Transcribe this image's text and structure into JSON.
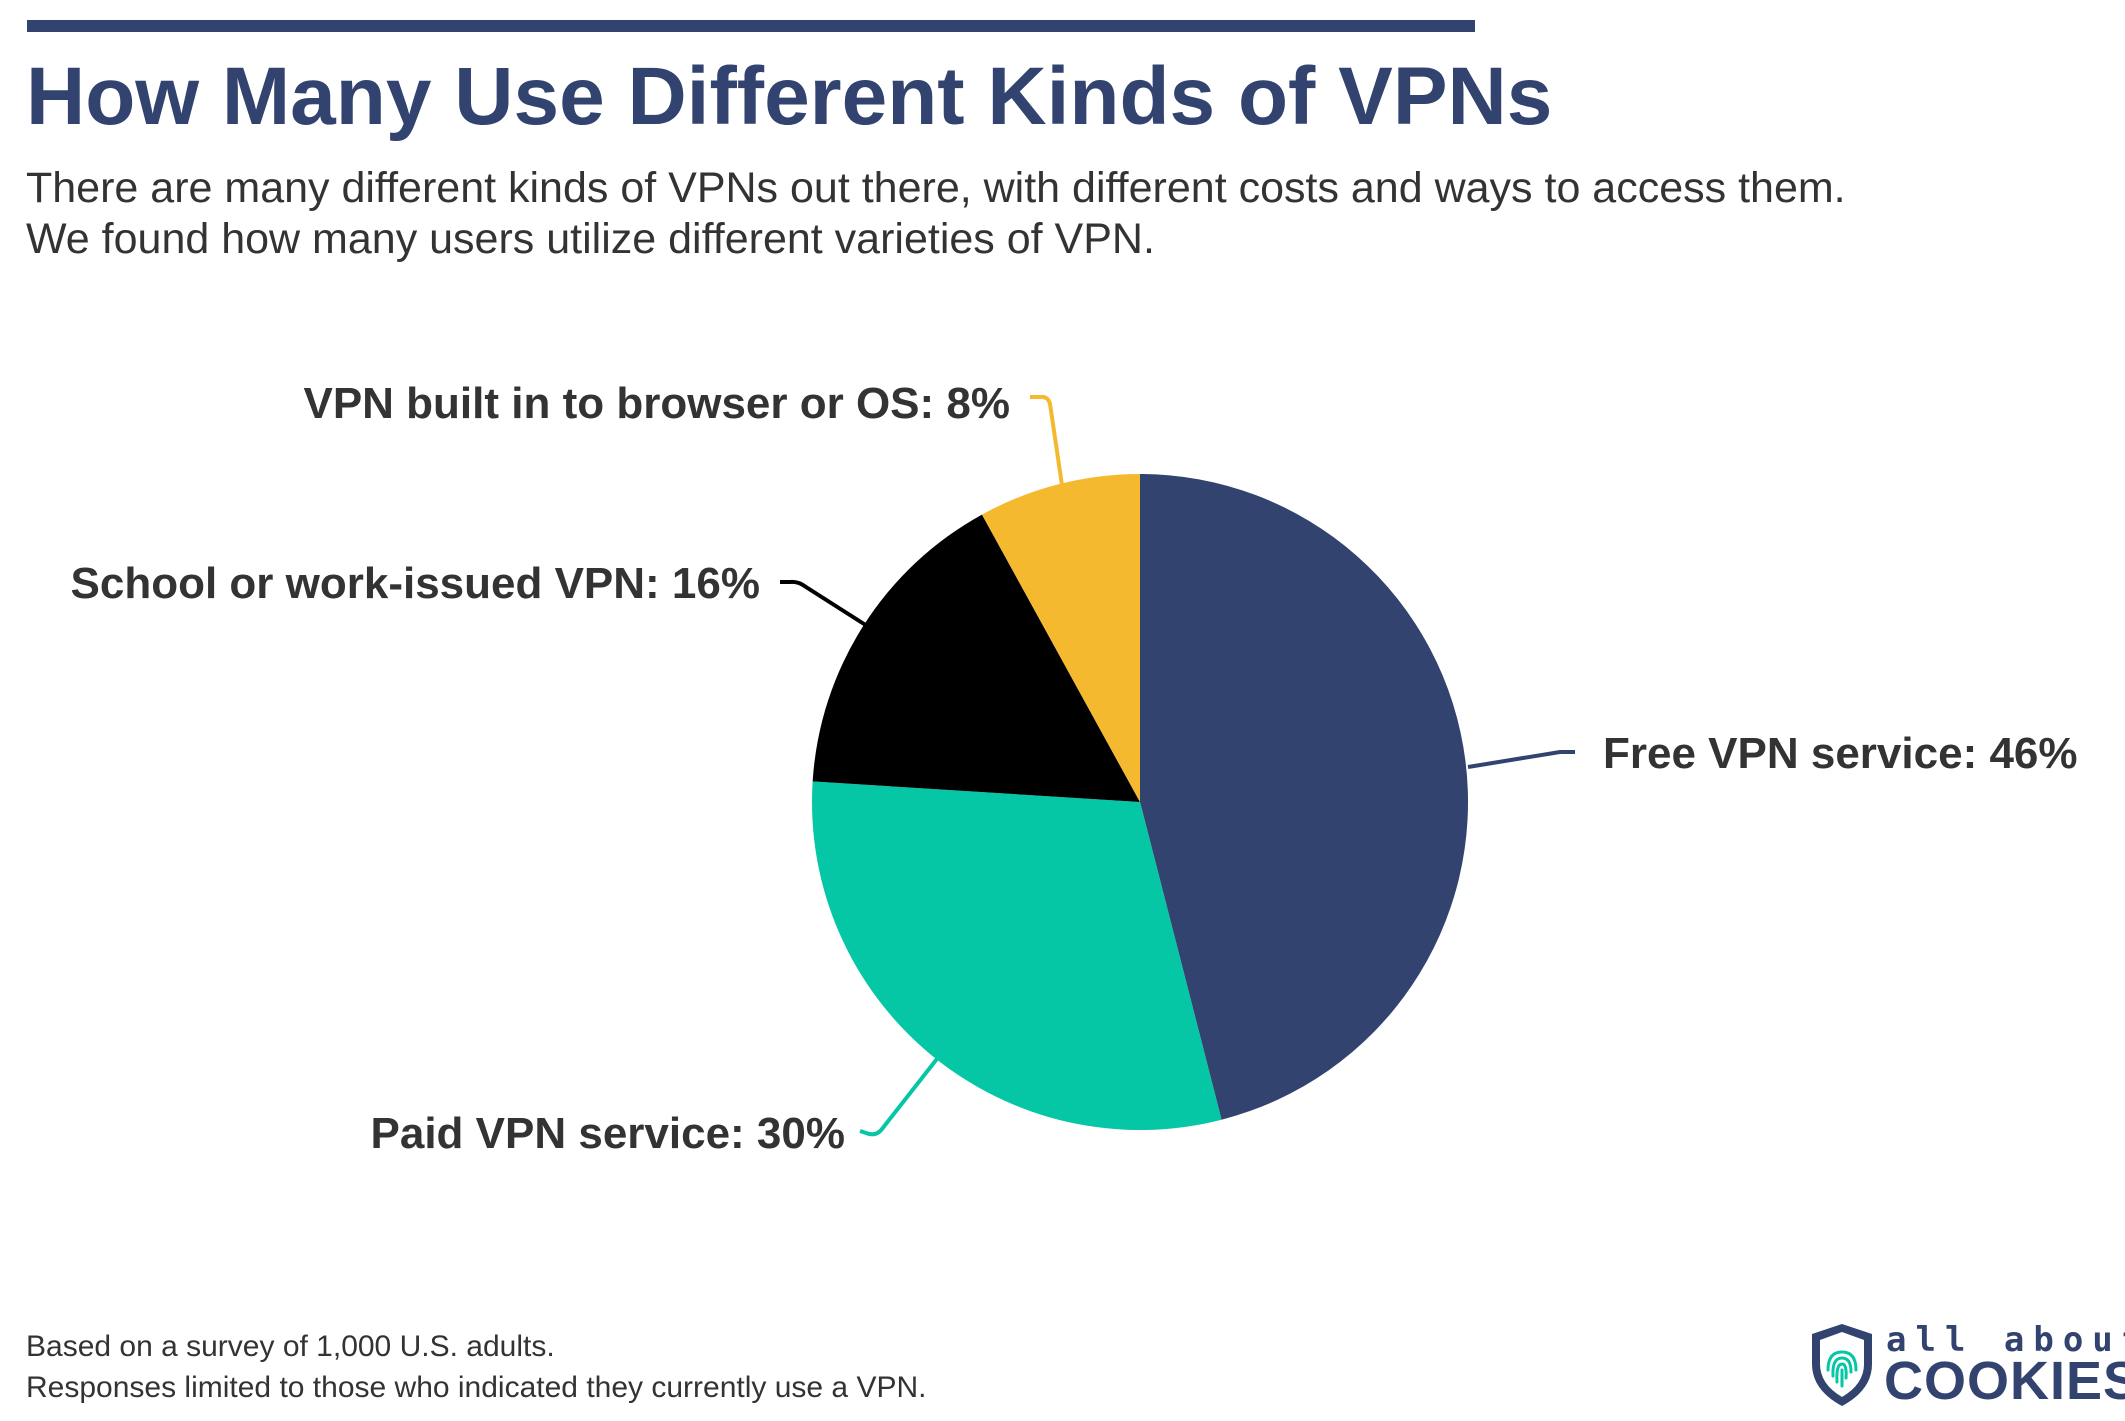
{
  "header": {
    "title": "How Many Use Different Kinds of VPNs",
    "subtitle_lines": [
      "There are many different kinds of VPNs out there, with different costs and ways to access them.",
      "We found how many users utilize different varieties of VPN."
    ]
  },
  "chart_data": {
    "type": "pie",
    "title": "How Many Use Different Kinds of VPNs",
    "slices": [
      {
        "label": "Free VPN service: 46%",
        "name": "Free VPN service",
        "value": 46,
        "color": "#33436f"
      },
      {
        "label": "Paid VPN service: 30%",
        "name": "Paid VPN service",
        "value": 30,
        "color": "#05c6a5"
      },
      {
        "label": "School or work-issued VPN: 16%",
        "name": "School or work-issued VPN",
        "value": 16,
        "color": "#000000"
      },
      {
        "label": "VPN built in to browser or OS: 8%",
        "name": "VPN built in to browser or OS",
        "value": 8,
        "color": "#f5b92f"
      }
    ],
    "legend": "none (direct labels with leader lines)"
  },
  "footnote": {
    "line1": "Based on a survey of 1,000 U.S. adults.",
    "line2": "Responses limited to those who indicated they currently use a VPN."
  },
  "logo": {
    "top": "all about",
    "bottom": "COOKIES",
    "icon": "fingerprint-shield-icon",
    "color": "#33436f",
    "accent": "#05c6a5"
  }
}
